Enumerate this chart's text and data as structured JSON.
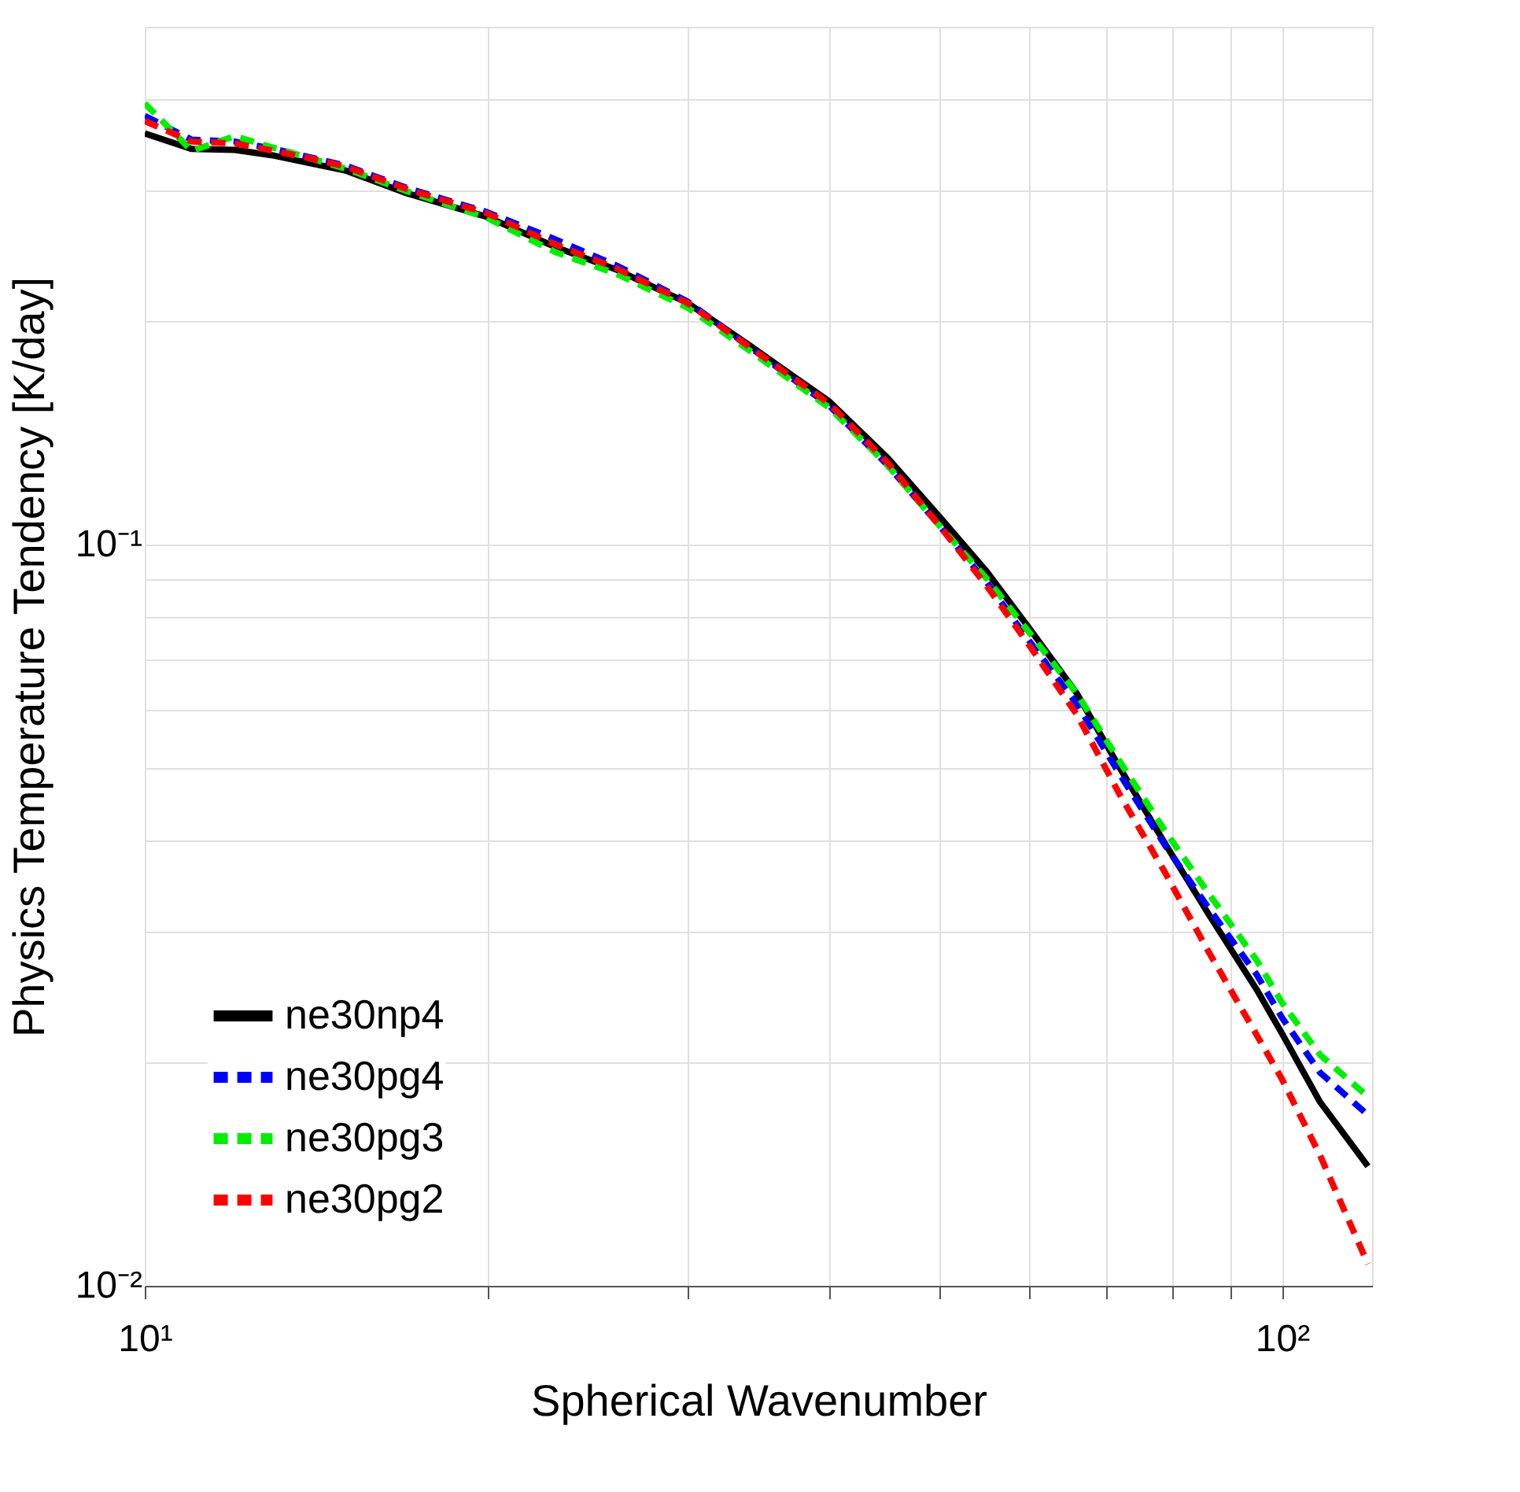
{
  "chart_data": {
    "type": "line",
    "xlabel": "Spherical Wavenumber",
    "ylabel": "Physics Temperature Tendency [K/day]",
    "x": [
      10,
      11,
      12,
      13,
      14,
      15,
      17,
      20,
      23,
      26,
      30,
      34,
      40,
      45,
      50,
      55,
      60,
      66,
      72,
      79,
      86,
      95,
      100,
      108,
      119
    ],
    "series": [
      {
        "name": "ne30np4",
        "color": "#000000",
        "line_style": "solid",
        "values": [
          0.359,
          0.342,
          0.341,
          0.335,
          0.327,
          0.32,
          0.298,
          0.277,
          0.252,
          0.235,
          0.212,
          0.186,
          0.156,
          0.131,
          0.109,
          0.092,
          0.077,
          0.063,
          0.05,
          0.0394,
          0.0319,
          0.0251,
          0.0219,
          0.0177,
          0.0145
        ]
      },
      {
        "name": "ne30pg4",
        "color": "#0000ff",
        "line_style": "dashed",
        "values": [
          0.379,
          0.352,
          0.35,
          0.342,
          0.333,
          0.325,
          0.303,
          0.281,
          0.258,
          0.238,
          0.213,
          0.185,
          0.154,
          0.128,
          0.106,
          0.089,
          0.074,
          0.061,
          0.049,
          0.0392,
          0.0325,
          0.0263,
          0.023,
          0.0194,
          0.017
        ]
      },
      {
        "name": "ne30pg3",
        "color": "#00ee00",
        "line_style": "dashed",
        "values": [
          0.394,
          0.34,
          0.356,
          0.343,
          0.332,
          0.322,
          0.3,
          0.276,
          0.248,
          0.232,
          0.209,
          0.183,
          0.153,
          0.128,
          0.106,
          0.09,
          0.076,
          0.063,
          0.051,
          0.041,
          0.034,
          0.0275,
          0.0241,
          0.0205,
          0.018
        ]
      },
      {
        "name": "ne30pg2",
        "color": "#ff0000",
        "line_style": "dashed",
        "values": [
          0.373,
          0.35,
          0.348,
          0.34,
          0.332,
          0.324,
          0.302,
          0.28,
          0.254,
          0.236,
          0.212,
          0.185,
          0.155,
          0.129,
          0.106,
          0.088,
          0.073,
          0.059,
          0.046,
          0.036,
          0.0284,
          0.0218,
          0.019,
          0.015,
          0.0107
        ]
      }
    ],
    "log": "xy",
    "xlim": [
      10,
      120
    ],
    "ylim": [
      0.01,
      0.5
    ],
    "xticks": [
      {
        "value": 10,
        "label": "10¹"
      },
      {
        "value": 20,
        "label": null
      },
      {
        "value": 30,
        "label": null
      },
      {
        "value": 40,
        "label": null
      },
      {
        "value": 50,
        "label": null
      },
      {
        "value": 60,
        "label": null
      },
      {
        "value": 70,
        "label": null
      },
      {
        "value": 80,
        "label": null
      },
      {
        "value": 90,
        "label": null
      },
      {
        "value": 100,
        "label": "10²"
      }
    ],
    "yticks": [
      {
        "value": 0.01,
        "label": "10⁻²"
      },
      {
        "value": 0.02,
        "label": null
      },
      {
        "value": 0.03,
        "label": null
      },
      {
        "value": 0.04,
        "label": null
      },
      {
        "value": 0.05,
        "label": null
      },
      {
        "value": 0.06,
        "label": null
      },
      {
        "value": 0.07,
        "label": null
      },
      {
        "value": 0.08,
        "label": null
      },
      {
        "value": 0.09,
        "label": null
      },
      {
        "value": 0.1,
        "label": "10⁻¹"
      },
      {
        "value": 0.2,
        "label": null
      },
      {
        "value": 0.3,
        "label": null
      },
      {
        "value": 0.4,
        "label": null
      },
      {
        "value": 0.5,
        "label": null
      }
    ],
    "grid": true,
    "legend": "bottom left"
  }
}
